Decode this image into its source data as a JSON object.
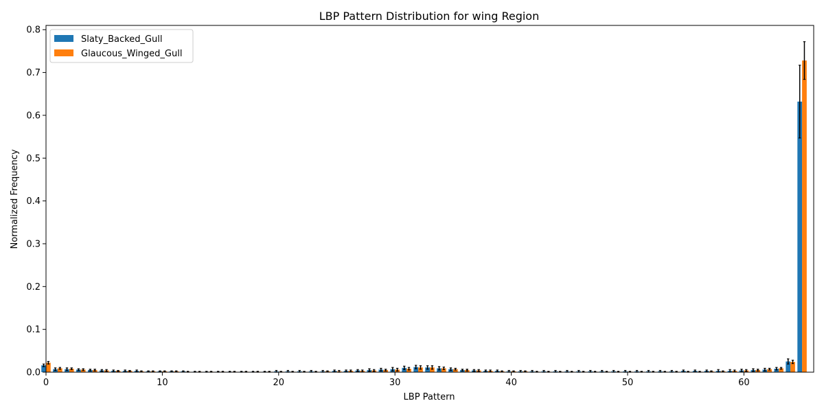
{
  "chart_data": {
    "type": "bar",
    "title": "LBP Pattern Distribution for wing Region",
    "xlabel": "LBP Pattern",
    "ylabel": "Normalized Frequency",
    "xlim": [
      0,
      66
    ],
    "ylim": [
      0,
      0.81
    ],
    "xticks": [
      0,
      10,
      20,
      30,
      40,
      50,
      60
    ],
    "yticks": [
      0.0,
      0.1,
      0.2,
      0.3,
      0.4,
      0.5,
      0.6,
      0.7,
      0.8
    ],
    "xtick_labels": [
      "0",
      "10",
      "20",
      "30",
      "40",
      "50",
      "60"
    ],
    "ytick_labels": [
      "0.0",
      "0.1",
      "0.2",
      "0.3",
      "0.4",
      "0.5",
      "0.6",
      "0.7",
      "0.8"
    ],
    "legend_position": "top-left",
    "grid": false,
    "categories": [
      0,
      1,
      2,
      3,
      4,
      5,
      6,
      7,
      8,
      9,
      10,
      11,
      12,
      13,
      14,
      15,
      16,
      17,
      18,
      19,
      20,
      21,
      22,
      23,
      24,
      25,
      26,
      27,
      28,
      29,
      30,
      31,
      32,
      33,
      34,
      35,
      36,
      37,
      38,
      39,
      40,
      41,
      42,
      43,
      44,
      45,
      46,
      47,
      48,
      49,
      50,
      51,
      52,
      53,
      54,
      55,
      56,
      57,
      58,
      59,
      60,
      61,
      62,
      63,
      64,
      65
    ],
    "series": [
      {
        "name": "Slaty_Backed_Gull",
        "color": "#1f77b4",
        "values": [
          0.016,
          0.007,
          0.007,
          0.006,
          0.005,
          0.004,
          0.003,
          0.003,
          0.003,
          0.002,
          0.002,
          0.002,
          0.002,
          0.001,
          0.001,
          0.001,
          0.001,
          0.001,
          0.001,
          0.001,
          0.002,
          0.002,
          0.002,
          0.002,
          0.002,
          0.003,
          0.003,
          0.004,
          0.005,
          0.006,
          0.007,
          0.01,
          0.012,
          0.011,
          0.009,
          0.007,
          0.005,
          0.004,
          0.003,
          0.003,
          0.002,
          0.002,
          0.002,
          0.002,
          0.002,
          0.002,
          0.002,
          0.002,
          0.002,
          0.002,
          0.002,
          0.002,
          0.002,
          0.002,
          0.002,
          0.003,
          0.003,
          0.003,
          0.003,
          0.003,
          0.004,
          0.005,
          0.006,
          0.008,
          0.025,
          0.632
        ],
        "errors": [
          0.003,
          0.003,
          0.003,
          0.002,
          0.002,
          0.002,
          0.002,
          0.002,
          0.002,
          0.001,
          0.001,
          0.001,
          0.001,
          0.001,
          0.001,
          0.001,
          0.001,
          0.001,
          0.001,
          0.001,
          0.002,
          0.002,
          0.002,
          0.002,
          0.002,
          0.002,
          0.002,
          0.002,
          0.003,
          0.003,
          0.004,
          0.004,
          0.004,
          0.004,
          0.004,
          0.003,
          0.002,
          0.002,
          0.002,
          0.002,
          0.002,
          0.002,
          0.002,
          0.002,
          0.002,
          0.002,
          0.002,
          0.002,
          0.002,
          0.002,
          0.002,
          0.002,
          0.002,
          0.002,
          0.002,
          0.002,
          0.002,
          0.002,
          0.003,
          0.003,
          0.003,
          0.003,
          0.003,
          0.003,
          0.006,
          0.085
        ]
      },
      {
        "name": "Glaucous_Winged_Gull",
        "color": "#ff7f0e",
        "values": [
          0.022,
          0.009,
          0.008,
          0.006,
          0.005,
          0.004,
          0.003,
          0.003,
          0.002,
          0.002,
          0.002,
          0.002,
          0.001,
          0.001,
          0.001,
          0.001,
          0.001,
          0.001,
          0.001,
          0.001,
          0.001,
          0.001,
          0.001,
          0.001,
          0.002,
          0.002,
          0.003,
          0.003,
          0.004,
          0.005,
          0.006,
          0.008,
          0.011,
          0.011,
          0.009,
          0.007,
          0.005,
          0.004,
          0.003,
          0.002,
          0.002,
          0.002,
          0.001,
          0.001,
          0.001,
          0.001,
          0.001,
          0.001,
          0.001,
          0.001,
          0.001,
          0.001,
          0.001,
          0.001,
          0.001,
          0.001,
          0.001,
          0.002,
          0.002,
          0.003,
          0.004,
          0.005,
          0.007,
          0.009,
          0.024,
          0.728
        ],
        "errors": [
          0.003,
          0.002,
          0.002,
          0.002,
          0.002,
          0.002,
          0.001,
          0.001,
          0.001,
          0.001,
          0.001,
          0.001,
          0.001,
          0.001,
          0.001,
          0.001,
          0.001,
          0.001,
          0.001,
          0.001,
          0.001,
          0.001,
          0.001,
          0.001,
          0.001,
          0.002,
          0.002,
          0.002,
          0.002,
          0.002,
          0.003,
          0.003,
          0.004,
          0.004,
          0.003,
          0.002,
          0.002,
          0.002,
          0.002,
          0.001,
          0.001,
          0.001,
          0.001,
          0.001,
          0.001,
          0.001,
          0.001,
          0.001,
          0.001,
          0.001,
          0.001,
          0.001,
          0.001,
          0.001,
          0.001,
          0.001,
          0.001,
          0.001,
          0.001,
          0.002,
          0.002,
          0.002,
          0.002,
          0.002,
          0.004,
          0.044
        ]
      }
    ]
  }
}
